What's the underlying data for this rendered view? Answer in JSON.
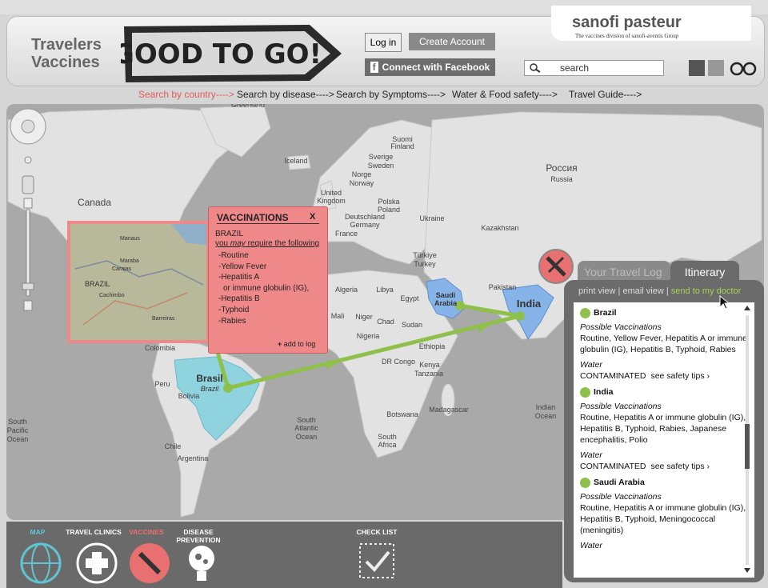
{
  "header": {
    "brand": "sanofi pasteur",
    "tagline": "The vaccines division of sanofi-aventis Group",
    "title": [
      "Travelers",
      "Vaccines"
    ],
    "logo": "GOOD TO GO!",
    "login": "Log in",
    "create_account": "Create Account",
    "facebook": "Connect with Facebook",
    "search": "search"
  },
  "nav": [
    "Search by country---->",
    "Search by disease---->",
    "Search by Symptoms---->",
    "Water & Food safety---->",
    "Travel Guide---->"
  ],
  "map": {
    "labels": [
      "Greenland",
      "Iceland",
      "Canada",
      "Suomi",
      "Finland",
      "Sverige",
      "Sweden",
      "Norge",
      "Norway",
      "United",
      "Kingdom",
      "Россия",
      "Russia",
      "Polska",
      "Poland",
      "Deutschland",
      "Germany",
      "Ukraine",
      "France",
      "Kazakhstan",
      "Türkiye",
      "Turkey",
      "Algeria",
      "Libya",
      "Egypt",
      "Pakistan",
      "Mali",
      "Niger",
      "Chad",
      "Sudan",
      "Nigeria",
      "Ethiopia",
      "DR Congo",
      "Kenya",
      "Tanzania",
      "Madagascar",
      "Botswana",
      "South",
      "Africa",
      "Colombia",
      "Peru",
      "Bolivia",
      "Chile",
      "Argentina",
      "South",
      "Pacific",
      "Ocean",
      "South",
      "Atlantic",
      "Ocean",
      "Indian",
      "Ocean"
    ],
    "highlight_labels": [
      "Saudi",
      "Arabia",
      "India",
      "Brasil",
      "Brazil"
    ],
    "inset_labels": [
      "BRAZIL",
      "Manaus",
      "Maraba",
      "Carajas",
      "Cachimbo",
      "Barreiras"
    ]
  },
  "popup": {
    "title": "VACCINATIONS",
    "close": "X",
    "country": "BRAZIL",
    "intro": [
      "you ",
      "may",
      " require the following"
    ],
    "items": [
      "-Routine",
      "-Yellow Fever",
      "-Hepatitis A",
      "or immune globulin (IG),",
      "-Hepatitis B",
      "-Typhoid",
      "-Rabies"
    ],
    "add": "add to log"
  },
  "panel": {
    "tabs": [
      "Your Travel Log",
      "Itinerary"
    ],
    "links": [
      "print view",
      "email view",
      "send to my doctor"
    ],
    "separator": "|",
    "entries": [
      {
        "country": "Brazil",
        "vacc_label": "Possible Vaccinations",
        "vaccinations": "Routine, Yellow Fever, Hepatitis A or immune globulin (IG), Hepatitis B, Typhoid, Rabies",
        "water_label": "Water",
        "water_status": "CONTAMINATED",
        "tips": "see safety tips ›"
      },
      {
        "country": "India",
        "vacc_label": "Possible Vaccinations",
        "vaccinations": "Routine, Hepatitis A or immune globulin (IG), Hepatitis B, Typhoid, Rabies, Japanese encephalitis, Polio",
        "water_label": "Water",
        "water_status": "CONTAMINATED",
        "tips": "see safety tips ›"
      },
      {
        "country": "Saudi Arabia",
        "vacc_label": "Possible Vaccinations",
        "vaccinations": "Routine, Hepatitis A or immune globulin (IG), Hepatitis B, Typhoid, Meningococcal (meningitis)",
        "water_label": "Water"
      }
    ]
  },
  "footer": {
    "items": [
      "MAP",
      "TRAVEL CLINICS",
      "VACCINES",
      "DISEASE PREVENTION"
    ],
    "checklist": "CHECK LIST"
  }
}
